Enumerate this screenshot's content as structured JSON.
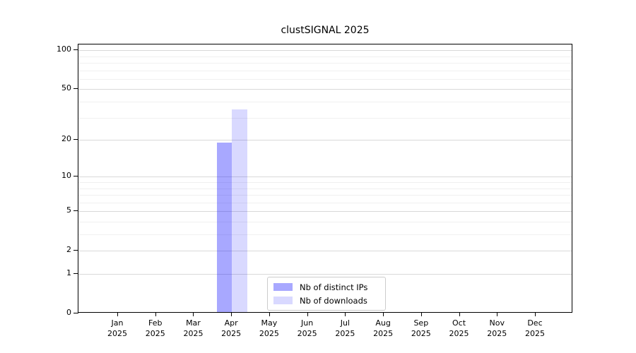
{
  "chart_data": {
    "type": "bar",
    "title": "clustSIGNAL 2025",
    "x_axis": {
      "months": [
        "Jan",
        "Feb",
        "Mar",
        "Apr",
        "May",
        "Jun",
        "Jul",
        "Aug",
        "Sep",
        "Oct",
        "Nov",
        "Dec"
      ],
      "year": "2025"
    },
    "y_axis": {
      "scale": "log1p",
      "major_ticks": [
        0,
        1,
        2,
        5,
        10,
        20,
        50,
        100
      ],
      "minor_gridlines": [
        3,
        4,
        6,
        7,
        8,
        9,
        30,
        40,
        60,
        70,
        80,
        90
      ],
      "ylim": [
        0,
        110
      ]
    },
    "series": [
      {
        "name": "Nb of distinct IPs",
        "color": "rgba(0,0,255,0.34)",
        "values": [
          0,
          0,
          0,
          19,
          0,
          0,
          0,
          0,
          0,
          0,
          0,
          0
        ]
      },
      {
        "name": "Nb of downloads",
        "color": "rgba(0,0,255,0.15)",
        "values": [
          0,
          0,
          0,
          35,
          0,
          0,
          0,
          0,
          0,
          0,
          0,
          0
        ]
      }
    ],
    "legend": {
      "position": "lower center",
      "entries": [
        "Nb of distinct IPs",
        "Nb of downloads"
      ]
    },
    "grid": true
  },
  "colors": {
    "grid_major": "#d9d9d9",
    "grid_minor": "#f0f0f0",
    "axis": "#000000",
    "background": "#ffffff",
    "bar_distinct_ips": "rgba(0,0,255,0.34)",
    "bar_downloads": "rgba(0,0,255,0.15)"
  }
}
